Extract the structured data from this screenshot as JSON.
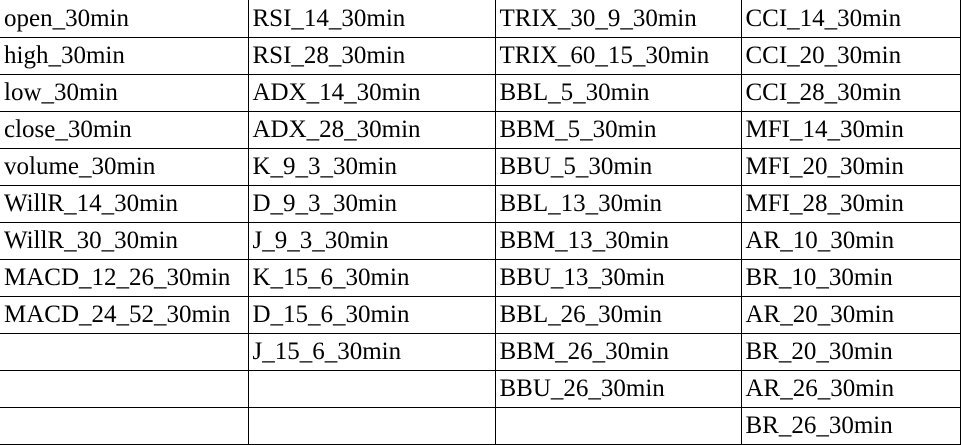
{
  "table": {
    "rows": [
      [
        "open_30min",
        "RSI_14_30min",
        "TRIX_30_9_30min",
        "CCI_14_30min"
      ],
      [
        "high_30min",
        "RSI_28_30min",
        "TRIX_60_15_30min",
        "CCI_20_30min"
      ],
      [
        "low_30min",
        "ADX_14_30min",
        "BBL_5_30min",
        "CCI_28_30min"
      ],
      [
        "close_30min",
        "ADX_28_30min",
        "BBM_5_30min",
        "MFI_14_30min"
      ],
      [
        "volume_30min",
        "K_9_3_30min",
        "BBU_5_30min",
        "MFI_20_30min"
      ],
      [
        "WillR_14_30min",
        "D_9_3_30min",
        "BBL_13_30min",
        "MFI_28_30min"
      ],
      [
        "WillR_30_30min",
        "J_9_3_30min",
        "BBM_13_30min",
        "AR_10_30min"
      ],
      [
        "MACD_12_26_30min",
        "K_15_6_30min",
        "BBU_13_30min",
        "BR_10_30min"
      ],
      [
        "MACD_24_52_30min",
        "D_15_6_30min",
        "BBL_26_30min",
        "AR_20_30min"
      ],
      [
        "",
        "J_15_6_30min",
        "BBM_26_30min",
        "BR_20_30min"
      ],
      [
        "",
        "",
        "BBU_26_30min",
        "AR_26_30min"
      ],
      [
        "",
        "",
        "",
        "BR_26_30min"
      ]
    ]
  }
}
